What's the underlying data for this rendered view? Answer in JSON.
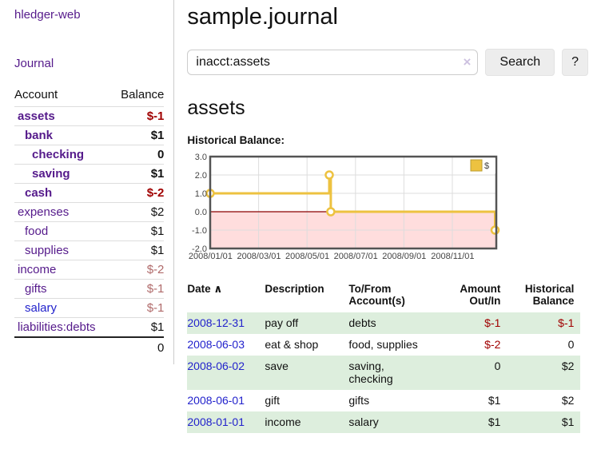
{
  "app": {
    "title": "hledger-web"
  },
  "colors": {
    "link_purple": "#551a8b",
    "link_blue": "#2222cc",
    "negative_dark": "#a00000",
    "negative_light": "#b06a6a",
    "row_green": "#ddeedd",
    "chart_line": "#edc240",
    "chart_negative_region": "#ffdddd",
    "chart_zero_line": "#8b0000"
  },
  "sidebar": {
    "journal_link": "Journal",
    "table": {
      "headers": {
        "account": "Account",
        "balance": "Balance"
      },
      "rows": [
        {
          "account": "assets",
          "balance": "$-1",
          "indent": 1,
          "bold": true,
          "neg": "dark"
        },
        {
          "account": "bank",
          "balance": "$1",
          "indent": 2,
          "bold": true
        },
        {
          "account": "checking",
          "balance": "0",
          "indent": 3,
          "bold": true
        },
        {
          "account": "saving",
          "balance": "$1",
          "indent": 3,
          "bold": true
        },
        {
          "account": "cash",
          "balance": "$-2",
          "indent": 2,
          "bold": true,
          "neg": "dark"
        },
        {
          "account": "expenses",
          "balance": "$2",
          "indent": 1
        },
        {
          "account": "food",
          "balance": "$1",
          "indent": 2
        },
        {
          "account": "supplies",
          "balance": "$1",
          "indent": 2
        },
        {
          "account": "income",
          "balance": "$-2",
          "indent": 1,
          "neg": "light"
        },
        {
          "account": "gifts",
          "balance": "$-1",
          "indent": 2,
          "neg": "light"
        },
        {
          "account": "salary",
          "balance": "$-1",
          "indent": 2,
          "neg": "light",
          "link_color": "blue"
        },
        {
          "account": "liabilities:debts",
          "balance": "$1",
          "indent": 1
        }
      ],
      "total": "0"
    }
  },
  "header": {
    "title": "sample.journal"
  },
  "search": {
    "value": "inacct:assets",
    "clear_icon": "×",
    "button_label": "Search",
    "help_label": "?"
  },
  "account_page": {
    "title": "assets",
    "chart_label": "Historical Balance:"
  },
  "chart_data": {
    "type": "line",
    "style": "step",
    "title": "Historical Balance",
    "series": [
      {
        "name": "$",
        "color": "#edc240",
        "points": [
          [
            "2008/01/01",
            1.0
          ],
          [
            "2008/06/01",
            2.0
          ],
          [
            "2008/06/03",
            0.0
          ],
          [
            "2008/12/31",
            -1.0
          ]
        ]
      }
    ],
    "yticks": [
      "3.0",
      "2.0",
      "1.0",
      "0.0",
      "-1.0",
      "-2.0"
    ],
    "xticks": [
      "2008/01/01",
      "2008/03/01",
      "2008/05/01",
      "2008/07/01",
      "2008/09/01",
      "2008/11/01"
    ],
    "ylim": [
      -2.0,
      3.0
    ],
    "grid": true,
    "legend": "$",
    "legend_position": "top-right"
  },
  "transactions": {
    "headers": {
      "date": "Date",
      "sort_icon": "∧",
      "description": "Description",
      "accounts": "To/From\nAccount(s)",
      "amount": "Amount\nOut/In",
      "balance": "Historical\nBalance"
    },
    "rows": [
      {
        "date": "2008-12-31",
        "description": "pay off",
        "accounts": "debts",
        "amount": "$-1",
        "balance": "$-1",
        "amount_neg": true,
        "balance_neg": true
      },
      {
        "date": "2008-06-03",
        "description": "eat & shop",
        "accounts": "food, supplies",
        "amount": "$-2",
        "balance": "0",
        "amount_neg": true
      },
      {
        "date": "2008-06-02",
        "description": "save",
        "accounts": "saving,\nchecking",
        "amount": "0",
        "balance": "$2"
      },
      {
        "date": "2008-06-01",
        "description": "gift",
        "accounts": "gifts",
        "amount": "$1",
        "balance": "$2"
      },
      {
        "date": "2008-01-01",
        "description": "income",
        "accounts": "salary",
        "amount": "$1",
        "balance": "$1"
      }
    ]
  }
}
